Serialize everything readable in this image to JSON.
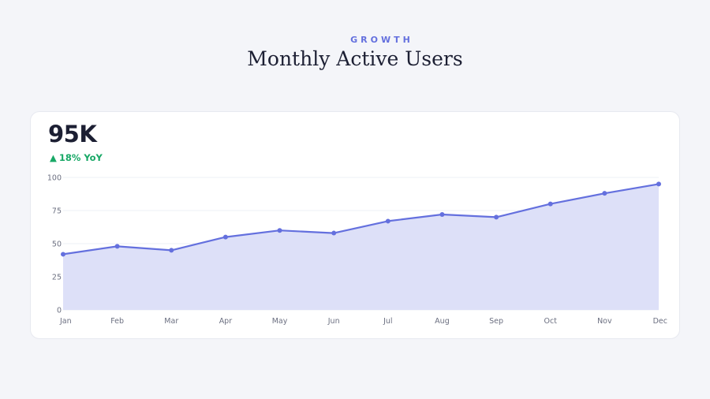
{
  "header": {
    "eyebrow": "GROWTH",
    "title": "Monthly Active Users"
  },
  "kpi": {
    "value": "95K",
    "delta_arrow": "▲",
    "delta_text": "18% YoY"
  },
  "colors": {
    "accent": "#6470de",
    "fill": "#dde0f8",
    "positive": "#18a866",
    "grid": "#eef0f4"
  },
  "chart_data": {
    "type": "area",
    "categories": [
      "Jan",
      "Feb",
      "Mar",
      "Apr",
      "May",
      "Jun",
      "Jul",
      "Aug",
      "Sep",
      "Oct",
      "Nov",
      "Dec"
    ],
    "series": [
      {
        "values": [
          42,
          48,
          45,
          55,
          60,
          58,
          67,
          72,
          70,
          80,
          88,
          95
        ]
      }
    ],
    "yticks": [
      "0",
      "25",
      "50",
      "75",
      "100"
    ],
    "ylim": [
      0,
      100
    ],
    "grid": true,
    "legend": "none"
  }
}
